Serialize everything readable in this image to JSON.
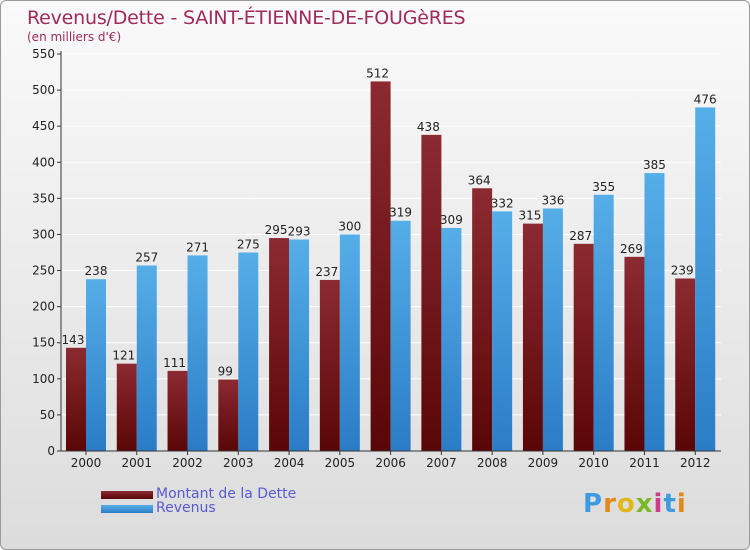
{
  "header": {
    "title": "Revenus/Dette - SAINT-ÉTIENNE-DE-FOUGèRES",
    "subtitle": "(en milliers d'€)"
  },
  "legend": {
    "items": [
      {
        "label": "Montant de la Dette",
        "color": "#6b1414"
      },
      {
        "label": "Revenus",
        "color": "#3f9be0"
      }
    ]
  },
  "logo": {
    "text": "Proxiti"
  },
  "chart_data": {
    "type": "bar",
    "categories": [
      "2000",
      "2001",
      "2002",
      "2003",
      "2004",
      "2005",
      "2006",
      "2007",
      "2008",
      "2009",
      "2010",
      "2011",
      "2012"
    ],
    "series": [
      {
        "name": "Montant de la Dette",
        "color": "#6b1414",
        "values": [
          143,
          121,
          111,
          99,
          295,
          237,
          512,
          438,
          364,
          315,
          287,
          269,
          239
        ]
      },
      {
        "name": "Revenus",
        "color": "#3f9be0",
        "values": [
          238,
          257,
          271,
          275,
          293,
          300,
          319,
          309,
          332,
          336,
          355,
          385,
          476
        ]
      }
    ],
    "ylim": [
      0,
      550
    ],
    "yticks": [
      0,
      50,
      100,
      150,
      200,
      250,
      300,
      350,
      400,
      450,
      500,
      550
    ],
    "grid": true,
    "legend_position": "bottom-left",
    "xlabel": "",
    "ylabel": ""
  }
}
